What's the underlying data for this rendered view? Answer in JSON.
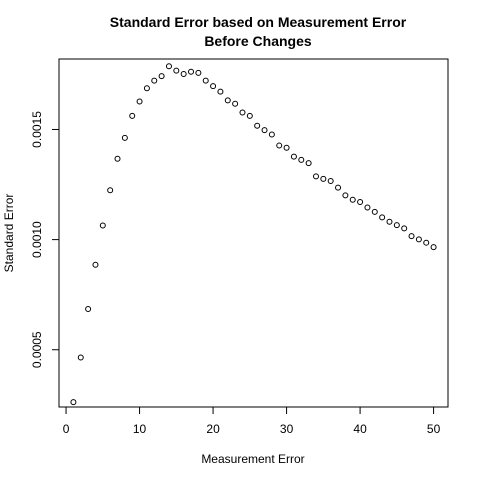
{
  "chart_data": {
    "type": "scatter",
    "title_line1": "Standard Error based on Measurement Error",
    "title_line2": "Before Changes",
    "xlabel": "Measurement Error",
    "ylabel": "Standard Error",
    "xlim": [
      -0.96,
      51.96
    ],
    "ylim": [
      0.00024,
      0.00182
    ],
    "x_ticks": [
      0,
      10,
      20,
      30,
      40,
      50
    ],
    "x_tick_labels": [
      "0",
      "10",
      "20",
      "30",
      "40",
      "50"
    ],
    "y_ticks": [
      0.0005,
      0.001,
      0.0015
    ],
    "y_tick_labels": [
      "0.0005",
      "0.0010",
      "0.0015"
    ],
    "grid": false,
    "legend": "none",
    "marker": "open-circle",
    "x": [
      1,
      2,
      3,
      4,
      5,
      6,
      7,
      8,
      9,
      10,
      11,
      12,
      13,
      14,
      15,
      16,
      17,
      18,
      19,
      20,
      21,
      22,
      23,
      24,
      25,
      26,
      27,
      28,
      29,
      30,
      31,
      32,
      33,
      34,
      35,
      36,
      37,
      38,
      39,
      40,
      41,
      42,
      43,
      44,
      45,
      46,
      47,
      48,
      49,
      50
    ],
    "y": [
      0.000262,
      0.000465,
      0.000685,
      0.000886,
      0.001064,
      0.001224,
      0.001367,
      0.001462,
      0.001562,
      0.001627,
      0.001687,
      0.001722,
      0.001742,
      0.001787,
      0.001767,
      0.001752,
      0.001762,
      0.001757,
      0.001722,
      0.001697,
      0.001672,
      0.001632,
      0.001617,
      0.001577,
      0.001562,
      0.001517,
      0.001497,
      0.001477,
      0.001427,
      0.001417,
      0.001377,
      0.001362,
      0.001347,
      0.001287,
      0.001276,
      0.001266,
      0.001236,
      0.001201,
      0.001181,
      0.001171,
      0.001146,
      0.001126,
      0.001101,
      0.001081,
      0.001066,
      0.001051,
      0.001016,
      0.001001,
      0.000986,
      0.000966
    ]
  }
}
